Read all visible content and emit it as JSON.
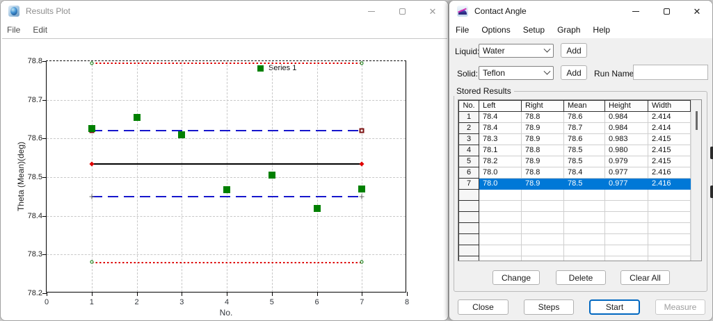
{
  "left_window": {
    "title": "Results Plot",
    "menus": [
      "File",
      "Edit"
    ]
  },
  "chart_data": {
    "type": "scatter",
    "title": "",
    "xlabel": "No.",
    "ylabel": "Theta (Mean)(deg)",
    "xlim": [
      0,
      8
    ],
    "ylim": [
      78.2,
      78.8
    ],
    "x_ticks": [
      0,
      1,
      2,
      3,
      4,
      5,
      6,
      7,
      8
    ],
    "y_ticks": [
      78.2,
      78.3,
      78.4,
      78.5,
      78.6,
      78.7,
      78.8
    ],
    "grid": true,
    "legend": {
      "position": "top-center",
      "entries": [
        "Series 1"
      ]
    },
    "series": [
      {
        "name": "Series 1",
        "marker": "square",
        "color": "#008000",
        "x": [
          1,
          2,
          3,
          4,
          5,
          6,
          7
        ],
        "y": [
          78.625,
          78.655,
          78.61,
          78.468,
          78.505,
          78.42,
          78.47
        ]
      }
    ],
    "reference_lines": [
      {
        "value": 78.795,
        "x_start": 1,
        "x_end": 7,
        "color": "#dd0000",
        "style": "dotted",
        "end_marker": "circle-green"
      },
      {
        "value": 78.62,
        "x_start": 1,
        "x_end": 7,
        "color": "#1616cc",
        "style": "dashed",
        "end_marker": "square-maroon"
      },
      {
        "value": 78.535,
        "x_start": 1,
        "x_end": 7,
        "color": "#000000",
        "style": "solid",
        "end_marker": "diamond-red"
      },
      {
        "value": 78.45,
        "x_start": 1,
        "x_end": 7,
        "color": "#1616cc",
        "style": "dashed",
        "end_marker": "plus-gray"
      },
      {
        "value": 78.28,
        "x_start": 1,
        "x_end": 7,
        "color": "#dd0000",
        "style": "dotted",
        "end_marker": "circle-green"
      }
    ]
  },
  "right_window": {
    "title": "Contact Angle",
    "menus": [
      "File",
      "Options",
      "Setup",
      "Graph",
      "Help"
    ],
    "liquid": {
      "label": "Liquid:",
      "value": "Water",
      "add_label": "Add"
    },
    "solid": {
      "label": "Solid:",
      "value": "Teflon",
      "add_label": "Add"
    },
    "run_name": {
      "label": "Run Name:",
      "value": ""
    },
    "stored_results": {
      "group_label": "Stored Results",
      "columns": [
        "No.",
        "Left",
        "Right",
        "Mean",
        "Height",
        "Width"
      ],
      "rows": [
        [
          "1",
          "78.4",
          "78.8",
          "78.6",
          "0.984",
          "2.414"
        ],
        [
          "2",
          "78.4",
          "78.9",
          "78.7",
          "0.984",
          "2.414"
        ],
        [
          "3",
          "78.3",
          "78.9",
          "78.6",
          "0.983",
          "2.415"
        ],
        [
          "4",
          "78.1",
          "78.8",
          "78.5",
          "0.980",
          "2.415"
        ],
        [
          "5",
          "78.2",
          "78.9",
          "78.5",
          "0.979",
          "2.415"
        ],
        [
          "6",
          "78.0",
          "78.8",
          "78.4",
          "0.977",
          "2.416"
        ],
        [
          "7",
          "78.0",
          "78.9",
          "78.5",
          "0.977",
          "2.416"
        ]
      ],
      "selected_row_index": 6,
      "empty_row_count": 8,
      "buttons": [
        "Change",
        "Delete",
        "Clear All"
      ]
    },
    "bottom_buttons": {
      "close": "Close",
      "steps": "Steps",
      "start": "Start",
      "measure": "Measure"
    },
    "colors": {
      "selection": "#0078d7",
      "default_button_border": "#0067c0"
    }
  }
}
